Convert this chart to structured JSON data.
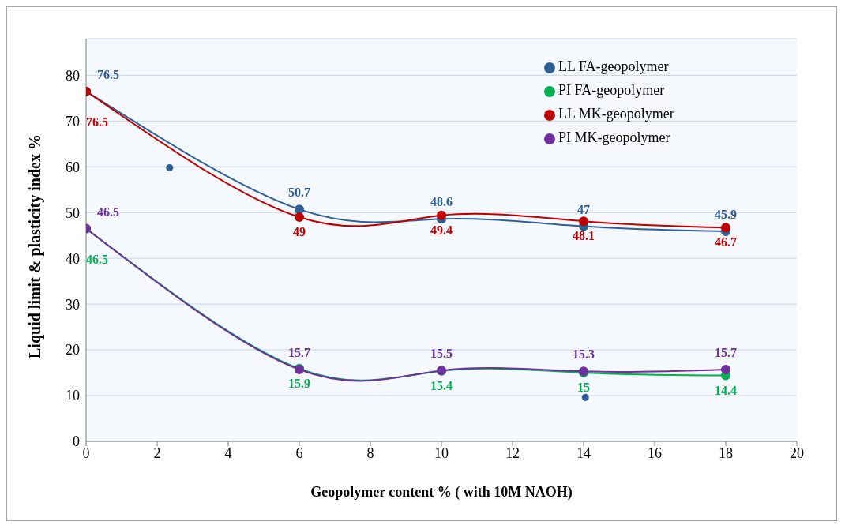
{
  "chart_data": {
    "type": "line",
    "xlabel": "Geopolymer  content % ( with 10M NAOH)",
    "ylabel": "Liquid limit & plasticity index %",
    "x": [
      0,
      6,
      10,
      14,
      18
    ],
    "series": [
      {
        "name": "LL FA-geopolymer",
        "color": "#2e5f97",
        "values": [
          76.5,
          50.7,
          48.6,
          47,
          45.9
        ],
        "value_labels": [
          "76.5",
          "50.7",
          "48.6",
          "47",
          "45.9"
        ]
      },
      {
        "name": "PI FA-geopolymer",
        "color": "#00b050",
        "values": [
          46.5,
          15.9,
          15.4,
          15,
          14.4
        ],
        "value_labels": [
          "46.5",
          "15.9",
          "15.4",
          "15",
          "14.4"
        ]
      },
      {
        "name": "LL MK-geopolymer",
        "color": "#c00000",
        "values": [
          76.5,
          49,
          49.4,
          48.1,
          46.7
        ],
        "value_labels": [
          "76.5",
          "49",
          "49.4",
          "48.1",
          "46.7"
        ]
      },
      {
        "name": "PI MK-geopolymer",
        "color": "#7030a0",
        "values": [
          46.5,
          15.7,
          15.5,
          15.3,
          15.7
        ],
        "value_labels": [
          "46.5",
          "15.7",
          "15.5",
          "15.3",
          "15.7"
        ]
      },
      {
        "type": "scatter",
        "color": "#2e5f97",
        "x": [
          2.35,
          14.05
        ],
        "values": [
          59.8,
          9.6
        ]
      }
    ],
    "xlim": [
      0,
      20
    ],
    "xticks": [
      0,
      2,
      4,
      6,
      8,
      10,
      12,
      14,
      16,
      18,
      20
    ],
    "ylim": [
      0,
      88
    ],
    "yticks": [
      0,
      10,
      20,
      30,
      40,
      50,
      60,
      70,
      80
    ],
    "grid": "y",
    "legend": "top right",
    "marker": "circle",
    "line_style": "solid"
  }
}
